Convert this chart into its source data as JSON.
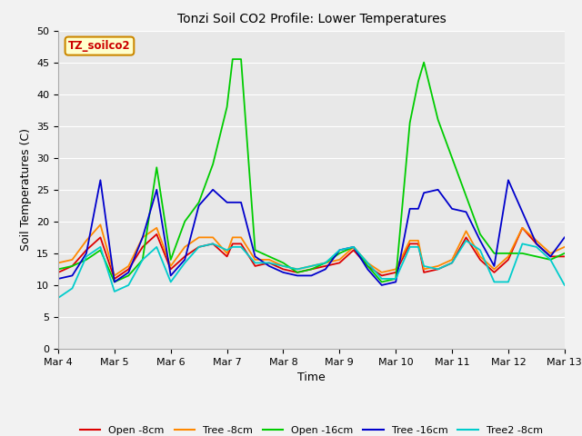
{
  "title": "Tonzi Soil CO2 Profile: Lower Temperatures",
  "xlabel": "Time",
  "ylabel": "Soil Temperatures (C)",
  "ylim": [
    0,
    50
  ],
  "yticks": [
    0,
    5,
    10,
    15,
    20,
    25,
    30,
    35,
    40,
    45,
    50
  ],
  "annotation": "TZ_soilco2",
  "plot_bg_color": "#e8e8e8",
  "fig_bg_color": "#f2f2f2",
  "legend": [
    "Open -8cm",
    "Tree -8cm",
    "Open -16cm",
    "Tree -16cm",
    "Tree2 -8cm"
  ],
  "colors": {
    "Open -8cm": "#dd0000",
    "Tree -8cm": "#ff8800",
    "Open -16cm": "#00cc00",
    "Tree -16cm": "#0000cc",
    "Tree2 -8cm": "#00cccc"
  },
  "x_days": [
    4.0,
    4.25,
    4.5,
    4.75,
    5.0,
    5.25,
    5.5,
    5.75,
    6.0,
    6.25,
    6.5,
    6.75,
    7.0,
    7.1,
    7.25,
    7.5,
    7.75,
    8.0,
    8.25,
    8.5,
    8.75,
    9.0,
    9.25,
    9.5,
    9.75,
    10.0,
    10.25,
    10.4,
    10.5,
    10.75,
    11.0,
    11.25,
    11.5,
    11.75,
    12.0,
    12.25,
    12.5,
    12.75,
    13.0
  ],
  "Open_8cm": [
    12.0,
    13.0,
    15.5,
    17.5,
    11.0,
    12.5,
    16.0,
    18.0,
    12.5,
    14.5,
    16.0,
    16.5,
    14.5,
    16.5,
    16.5,
    13.0,
    13.5,
    12.5,
    12.0,
    12.5,
    13.0,
    13.5,
    15.5,
    13.0,
    11.5,
    12.0,
    16.5,
    16.5,
    12.0,
    12.5,
    13.5,
    17.5,
    14.0,
    12.0,
    14.0,
    19.0,
    16.5,
    14.5,
    14.5
  ],
  "Tree_8cm": [
    13.5,
    14.0,
    17.0,
    19.5,
    11.5,
    13.0,
    17.5,
    19.0,
    13.0,
    16.0,
    17.5,
    17.5,
    15.0,
    17.5,
    17.5,
    14.0,
    14.0,
    13.0,
    12.5,
    13.0,
    13.5,
    14.0,
    16.0,
    13.5,
    12.0,
    12.5,
    17.0,
    17.0,
    12.5,
    13.0,
    14.0,
    18.5,
    14.5,
    12.5,
    14.5,
    19.0,
    17.0,
    15.0,
    16.0
  ],
  "Open_16cm": [
    12.5,
    13.0,
    14.0,
    15.5,
    10.5,
    11.5,
    14.0,
    28.5,
    14.0,
    20.0,
    23.0,
    29.0,
    38.0,
    45.5,
    45.5,
    15.5,
    14.5,
    13.5,
    12.0,
    12.5,
    13.5,
    15.0,
    16.0,
    13.0,
    10.5,
    11.0,
    35.5,
    42.0,
    45.0,
    36.0,
    30.0,
    24.0,
    18.0,
    15.0,
    15.0,
    15.0,
    14.5,
    14.0,
    15.0
  ],
  "Tree_16cm": [
    11.0,
    11.5,
    15.0,
    26.5,
    10.5,
    12.0,
    17.5,
    25.0,
    11.5,
    14.0,
    22.5,
    25.0,
    23.0,
    23.0,
    23.0,
    14.5,
    13.0,
    12.0,
    11.5,
    11.5,
    12.5,
    15.5,
    16.0,
    12.5,
    10.0,
    10.5,
    22.0,
    22.0,
    24.5,
    25.0,
    22.0,
    21.5,
    17.0,
    13.0,
    26.5,
    21.5,
    16.5,
    14.5,
    17.5
  ],
  "Tree2_8cm": [
    8.0,
    9.5,
    14.5,
    16.0,
    9.0,
    10.0,
    14.0,
    16.0,
    10.5,
    13.5,
    16.0,
    16.5,
    15.5,
    16.0,
    16.0,
    13.5,
    13.5,
    13.0,
    12.5,
    13.0,
    13.5,
    15.5,
    16.0,
    13.5,
    11.0,
    11.0,
    16.0,
    16.0,
    13.0,
    12.5,
    13.5,
    17.0,
    15.5,
    10.5,
    10.5,
    16.5,
    16.0,
    14.0,
    10.0
  ]
}
